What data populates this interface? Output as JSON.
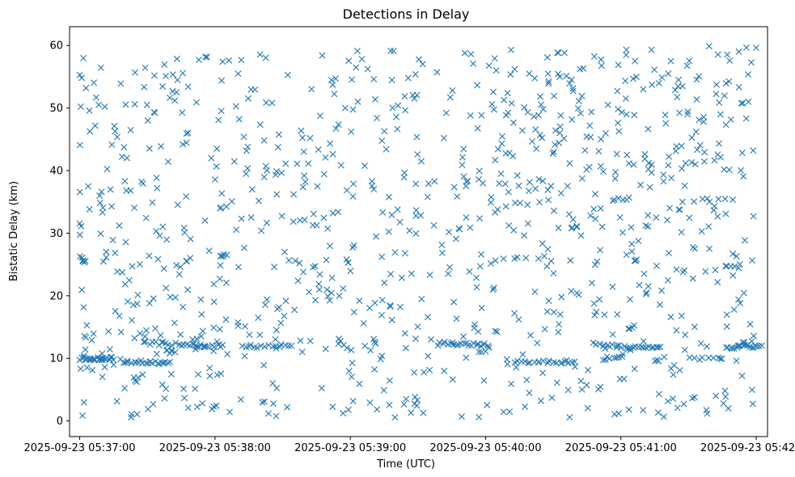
{
  "chart_data": {
    "type": "scatter",
    "title": "Detections in Delay",
    "xlabel": "Time (UTC)",
    "ylabel": "Bistatic Delay (km)",
    "marker": "x",
    "color": "#1f77b4",
    "grid": false,
    "x_unit": "seconds after 2025-09-23 05:37:00 UTC",
    "xlim": [
      -4.5,
      305
    ],
    "ylim": [
      -2.5,
      63
    ],
    "x_ticks": [
      {
        "value": 0,
        "label": "2025-09-23 05:37:00"
      },
      {
        "value": 60,
        "label": "2025-09-23 05:38:00"
      },
      {
        "value": 120,
        "label": "2025-09-23 05:39:00"
      },
      {
        "value": 180,
        "label": "2025-09-23 05:40:00"
      },
      {
        "value": 240,
        "label": "2025-09-23 05:41:00"
      },
      {
        "value": 300,
        "label": "2025-09-23 05:42:00"
      }
    ],
    "y_ticks": [
      {
        "value": 0,
        "label": "0"
      },
      {
        "value": 10,
        "label": "10"
      },
      {
        "value": 20,
        "label": "20"
      },
      {
        "value": 30,
        "label": "30"
      },
      {
        "value": 40,
        "label": "40"
      },
      {
        "value": 50,
        "label": "50"
      },
      {
        "value": 60,
        "label": "60"
      }
    ],
    "tracks": [
      {
        "x": [
          0,
          15
        ],
        "y": [
          10,
          10
        ],
        "n": 26
      },
      {
        "x": [
          0,
          3
        ],
        "y": [
          26,
          25.5
        ],
        "n": 6
      },
      {
        "x": [
          18,
          40
        ],
        "y": [
          9.6,
          9.2
        ],
        "n": 25
      },
      {
        "x": [
          28,
          55
        ],
        "y": [
          12.5,
          12
        ],
        "n": 20
      },
      {
        "x": [
          38,
          42
        ],
        "y": [
          11,
          11
        ],
        "n": 6
      },
      {
        "x": [
          52,
          64
        ],
        "y": [
          12,
          12
        ],
        "n": 10
      },
      {
        "x": [
          62,
          65
        ],
        "y": [
          26.5,
          26.5
        ],
        "n": 6
      },
      {
        "x": [
          72,
          82
        ],
        "y": [
          12,
          12
        ],
        "n": 8
      },
      {
        "x": [
          84,
          94
        ],
        "y": [
          12,
          12
        ],
        "n": 8
      },
      {
        "x": [
          160,
          182
        ],
        "y": [
          12.5,
          12
        ],
        "n": 22
      },
      {
        "x": [
          193,
          220
        ],
        "y": [
          9.5,
          9.3
        ],
        "n": 20
      },
      {
        "x": [
          228,
          256
        ],
        "y": [
          12.2,
          11.5
        ],
        "n": 24
      },
      {
        "x": [
          232,
          240
        ],
        "y": [
          10,
          10
        ],
        "n": 8
      },
      {
        "x": [
          287,
          302
        ],
        "y": [
          11.7,
          12
        ],
        "n": 20
      },
      {
        "x": [
          270,
          285
        ],
        "y": [
          10,
          10
        ],
        "n": 8
      },
      {
        "x": [
          286,
          292
        ],
        "y": [
          24.5,
          24.5
        ],
        "n": 5
      },
      {
        "x": [
          236,
          242
        ],
        "y": [
          35.3,
          35.3
        ],
        "n": 5
      },
      {
        "x": [
          272,
          290
        ],
        "y": [
          35.3,
          35.3
        ],
        "n": 6
      }
    ],
    "random_points": 980,
    "random_seed": 7
  }
}
